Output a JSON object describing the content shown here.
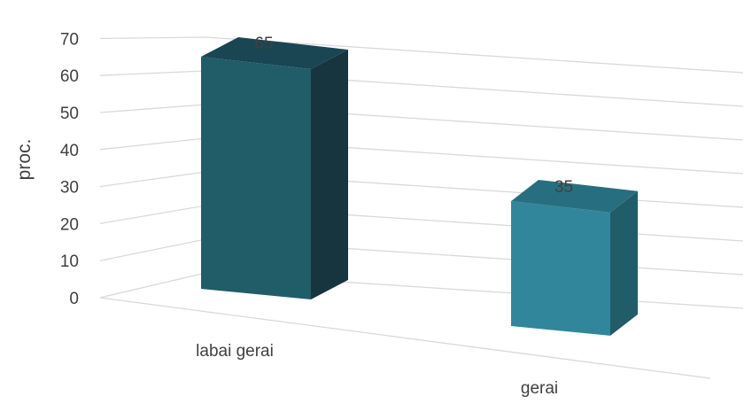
{
  "chart_data": {
    "type": "bar",
    "style": "3d-column",
    "title": "",
    "xlabel": "",
    "ylabel": "proc.",
    "ylim": [
      0,
      70
    ],
    "yticks": [
      0,
      10,
      20,
      30,
      40,
      50,
      60,
      70
    ],
    "grid": true,
    "legend": "none",
    "categories": [
      "labai gerai",
      "gerai"
    ],
    "values": [
      65,
      35
    ],
    "data_labels": [
      "65",
      "35"
    ],
    "bar_colors": [
      {
        "front": "#215c69",
        "side": "#17353f",
        "top": "#1a4653"
      },
      {
        "front": "#31869b",
        "side": "#215c69",
        "top": "#276f80"
      }
    ],
    "grid_color": "#d9d9d9",
    "text_color": "#404040"
  }
}
